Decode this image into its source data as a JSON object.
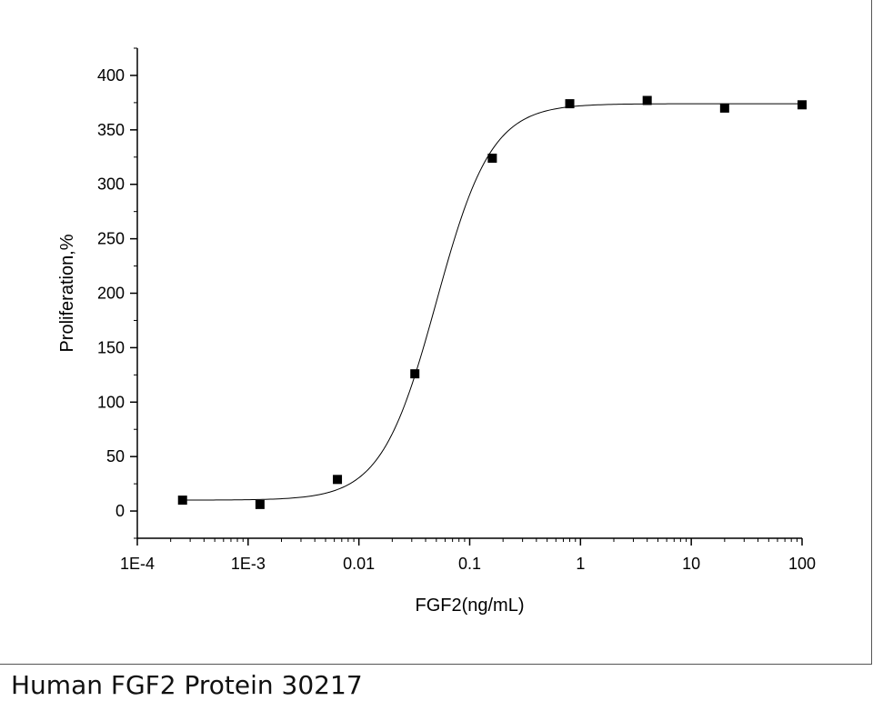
{
  "caption": "Human FGF2 Protein 30217",
  "chart_data": {
    "type": "scatter",
    "title": "",
    "xlabel": "FGF2(ng/mL)",
    "ylabel": "Proliferation,%",
    "x_scale": "log",
    "xlim": [
      0.0001,
      100
    ],
    "ylim": [
      -25,
      425
    ],
    "x_ticks": [
      {
        "value": 0.0001,
        "label": "1E-4"
      },
      {
        "value": 0.001,
        "label": "1E-3"
      },
      {
        "value": 0.01,
        "label": "0.01"
      },
      {
        "value": 0.1,
        "label": "0.1"
      },
      {
        "value": 1,
        "label": "1"
      },
      {
        "value": 10,
        "label": "10"
      },
      {
        "value": 100,
        "label": "100"
      }
    ],
    "y_ticks": [
      {
        "value": 0,
        "label": "0"
      },
      {
        "value": 50,
        "label": "50"
      },
      {
        "value": 100,
        "label": "100"
      },
      {
        "value": 150,
        "label": "150"
      },
      {
        "value": 200,
        "label": "200"
      },
      {
        "value": 250,
        "label": "250"
      },
      {
        "value": 300,
        "label": "300"
      },
      {
        "value": 350,
        "label": "350"
      },
      {
        "value": 400,
        "label": "400"
      }
    ],
    "points": [
      {
        "x": 0.000256,
        "y": 10
      },
      {
        "x": 0.00128,
        "y": 6
      },
      {
        "x": 0.0064,
        "y": 29
      },
      {
        "x": 0.032,
        "y": 126
      },
      {
        "x": 0.16,
        "y": 324
      },
      {
        "x": 0.8,
        "y": 374
      },
      {
        "x": 4,
        "y": 377
      },
      {
        "x": 20,
        "y": 370
      },
      {
        "x": 100,
        "y": 373
      }
    ],
    "fit": {
      "model": "4PL",
      "bottom": 10,
      "top": 374,
      "ec50": 0.05,
      "hill": 1.75
    },
    "grid": false,
    "legend": "none",
    "marker_color": "#000000",
    "line_color": "#000000"
  }
}
